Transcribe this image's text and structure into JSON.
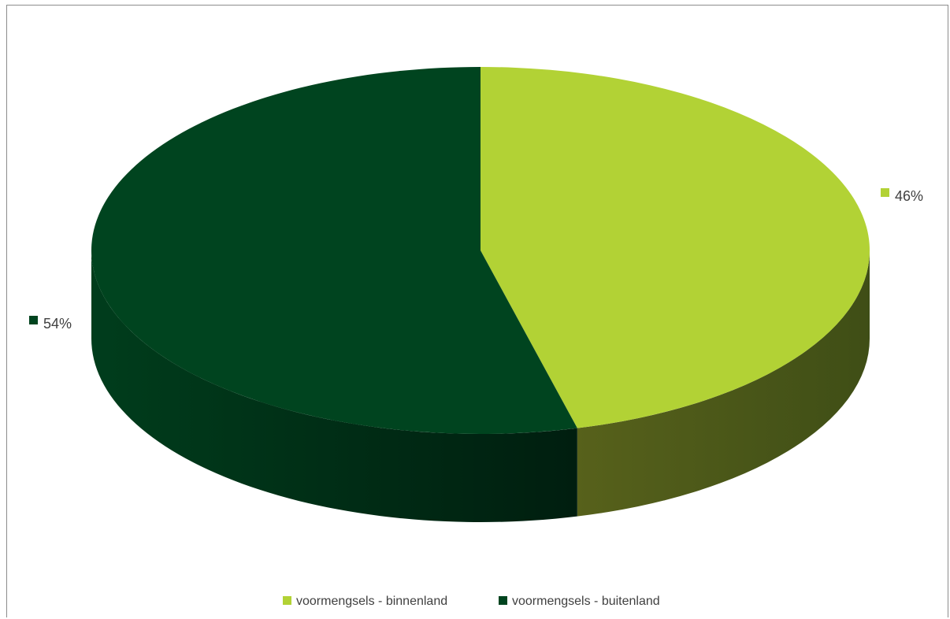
{
  "chart_data": {
    "type": "pie",
    "style": "3d",
    "slices": [
      {
        "label": "voormengsels - binnenland",
        "value": 46,
        "display": "46%",
        "color": "#b2d235",
        "side_color": "#4a5717"
      },
      {
        "label": "voormengsels - buitenland",
        "value": 54,
        "display": "54%",
        "color": "#00441f",
        "side_color": "#002a14"
      }
    ],
    "legend_position": "bottom"
  }
}
